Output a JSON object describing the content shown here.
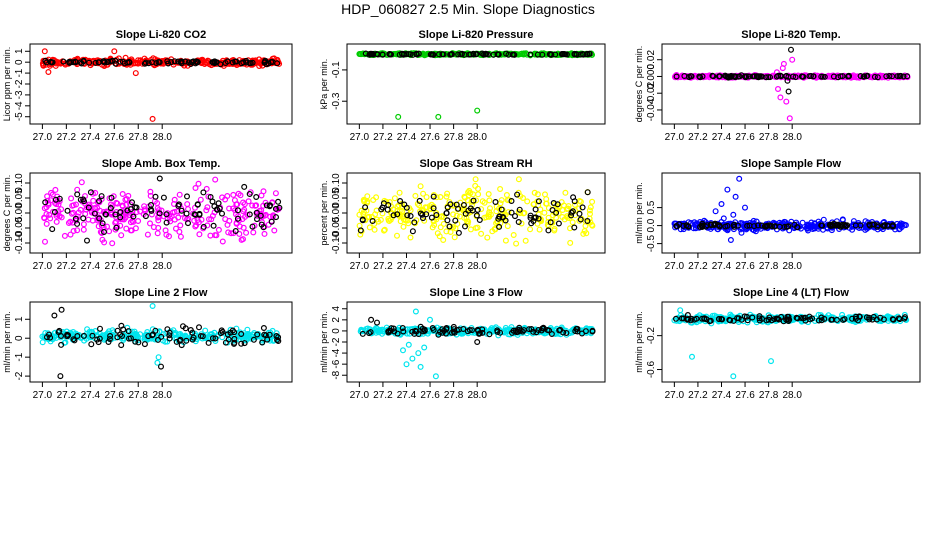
{
  "title": "HDP_060827  2.5 Min. Slope Diagnostics",
  "chart_data": [
    {
      "type": "scatter",
      "title": "Slope Li-820 CO2",
      "ylabel": "Licor ppm per min.",
      "xlim": [
        26.98,
        29.0
      ],
      "ylim": [
        -5.3,
        1.3
      ],
      "xticks": [
        27.0,
        27.2,
        27.4,
        27.6,
        27.8,
        28.0
      ],
      "xtick_labels": [
        "27.0",
        "27.2",
        "27.4",
        "27.6",
        "27.8",
        "28.0"
      ],
      "yticks": [
        -5,
        -4,
        -3,
        -2,
        -1,
        0,
        1
      ],
      "ytick_labels": [
        "-5",
        "-4",
        "-3",
        "-2",
        "-1",
        "0",
        "1"
      ],
      "series": [
        {
          "name": "all",
          "color": "#ff0000",
          "center": 0.0,
          "spread": 0.3,
          "outliers": [
            [
              27.02,
              1.0
            ],
            [
              27.92,
              -5.2
            ],
            [
              27.05,
              -0.9
            ],
            [
              27.6,
              1.0
            ],
            [
              27.78,
              -1.0
            ]
          ]
        },
        {
          "name": "selected",
          "color": "#000000",
          "center": 0.0,
          "spread": 0.15,
          "outliers": []
        }
      ]
    },
    {
      "type": "scatter",
      "title": "Slope Li-820 Pressure",
      "ylabel": "kPa per min.",
      "xlim": [
        26.98,
        29.0
      ],
      "ylim": [
        -0.42,
        0.04
      ],
      "xticks": [
        27.0,
        27.2,
        27.4,
        27.6,
        27.8,
        28.0
      ],
      "xtick_labels": [
        "27.0",
        "27.2",
        "27.4",
        "27.6",
        "27.8",
        "28.0"
      ],
      "yticks": [
        -0.3,
        -0.1
      ],
      "ytick_labels": [
        "-0.3",
        "-0.1"
      ],
      "series": [
        {
          "name": "all",
          "color": "#00cc00",
          "center": 0.0,
          "spread": 0.006,
          "outliers": [
            [
              27.33,
              -0.4
            ],
            [
              27.67,
              -0.4
            ],
            [
              28.0,
              -0.36
            ]
          ]
        },
        {
          "name": "selected",
          "color": "#000000",
          "center": 0.0,
          "spread": 0.004,
          "outliers": []
        }
      ]
    },
    {
      "type": "scatter",
      "title": "Slope Li-820 Temp.",
      "ylabel": "degrees C per min.",
      "xlim": [
        26.98,
        29.0
      ],
      "ylim": [
        -0.052,
        0.034
      ],
      "xticks": [
        27.0,
        27.2,
        27.4,
        27.6,
        27.8,
        28.0
      ],
      "xtick_labels": [
        "27.0",
        "27.2",
        "27.4",
        "27.6",
        "27.8",
        "28.0"
      ],
      "yticks": [
        -0.04,
        -0.02,
        0.0,
        0.02
      ],
      "ytick_labels": [
        "-0.04",
        "-0.02",
        "0.000",
        "0.02"
      ],
      "series": [
        {
          "name": "all",
          "color": "#ff00ff",
          "center": 0.0,
          "spread": 0.0015,
          "outliers": [
            [
              27.9,
              -0.025
            ],
            [
              27.92,
              0.01
            ],
            [
              27.95,
              -0.03
            ],
            [
              27.98,
              -0.05
            ],
            [
              27.93,
              0.015
            ],
            [
              28.0,
              0.02
            ],
            [
              27.87,
              0.005
            ],
            [
              27.88,
              -0.015
            ]
          ]
        },
        {
          "name": "selected",
          "color": "#000000",
          "center": 0.0,
          "spread": 0.001,
          "outliers": [
            [
              27.99,
              0.032
            ],
            [
              27.96,
              -0.005
            ],
            [
              27.97,
              -0.018
            ]
          ]
        }
      ]
    },
    {
      "type": "scatter",
      "title": "Slope Amb. Box Temp.",
      "ylabel": "degrees C per min.",
      "xlim": [
        26.98,
        29.0
      ],
      "ylim": [
        -0.12,
        0.12
      ],
      "xticks": [
        27.0,
        27.2,
        27.4,
        27.6,
        27.8,
        28.0
      ],
      "xtick_labels": [
        "27.0",
        "27.2",
        "27.4",
        "27.6",
        "27.8",
        "28.0"
      ],
      "yticks": [
        -0.1,
        -0.05,
        0.0,
        0.05,
        0.1
      ],
      "ytick_labels": [
        "-0.10",
        "-0.05",
        "0.00",
        "0.05",
        "0.10"
      ],
      "series": [
        {
          "name": "all",
          "color": "#ff00ff",
          "center": 0.0,
          "spread": 0.08,
          "outliers": []
        },
        {
          "name": "selected",
          "color": "#000000",
          "center": 0.0,
          "spread": 0.07,
          "outliers": [
            [
              27.98,
              0.115
            ]
          ]
        }
      ]
    },
    {
      "type": "scatter",
      "title": "Slope Gas Stream RH",
      "ylabel": "percent per min.",
      "xlim": [
        26.98,
        29.0
      ],
      "ylim": [
        -0.12,
        0.12
      ],
      "xticks": [
        27.0,
        27.2,
        27.4,
        27.6,
        27.8,
        28.0
      ],
      "xtick_labels": [
        "27.0",
        "27.2",
        "27.4",
        "27.6",
        "27.8",
        "28.0"
      ],
      "yticks": [
        -0.1,
        -0.05,
        0.0,
        0.05,
        0.1
      ],
      "ytick_labels": [
        "-0.10",
        "-0.05",
        "0.00",
        "0.05",
        "0.10"
      ],
      "series": [
        {
          "name": "all",
          "color": "#ffff00",
          "center": 0.0,
          "spread": 0.08,
          "outliers": []
        },
        {
          "name": "selected",
          "color": "#000000",
          "center": 0.0,
          "spread": 0.06,
          "outliers": []
        }
      ]
    },
    {
      "type": "scatter",
      "title": "Slope Sample Flow",
      "ylabel": "ml/min per min.",
      "xlim": [
        26.98,
        29.0
      ],
      "ylim": [
        -0.65,
        1.35
      ],
      "xticks": [
        27.0,
        27.2,
        27.4,
        27.6,
        27.8,
        28.0
      ],
      "xtick_labels": [
        "27.0",
        "27.2",
        "27.4",
        "27.6",
        "27.8",
        "28.0"
      ],
      "yticks": [
        -0.5,
        0.0,
        0.5
      ],
      "ytick_labels": [
        "-0.5",
        "0.0",
        "0.5"
      ],
      "series": [
        {
          "name": "all",
          "color": "#0000ff",
          "center": 0.0,
          "spread": 0.12,
          "outliers": [
            [
              27.45,
              1.0
            ],
            [
              27.55,
              1.3
            ],
            [
              27.4,
              0.6
            ],
            [
              27.35,
              0.4
            ],
            [
              27.5,
              0.3
            ],
            [
              27.6,
              0.5
            ],
            [
              27.48,
              -0.4
            ],
            [
              27.42,
              0.2
            ],
            [
              27.52,
              0.8
            ],
            [
              27.57,
              -0.2
            ]
          ]
        },
        {
          "name": "selected",
          "color": "#000000",
          "center": 0.0,
          "spread": 0.05,
          "outliers": []
        }
      ]
    },
    {
      "type": "scatter",
      "title": "Slope Line 2 Flow",
      "ylabel": "ml/min per min.",
      "xlim": [
        26.98,
        29.0
      ],
      "ylim": [
        -2.1,
        1.7
      ],
      "xticks": [
        27.0,
        27.2,
        27.4,
        27.6,
        27.8,
        28.0
      ],
      "xtick_labels": [
        "27.0",
        "27.2",
        "27.4",
        "27.6",
        "27.8",
        "28.0"
      ],
      "yticks": [
        -2,
        -1,
        0,
        1
      ],
      "ytick_labels": [
        "-2",
        "-1",
        "0",
        "1"
      ],
      "series": [
        {
          "name": "all",
          "color": "#00e5ee",
          "center": 0.1,
          "spread": 0.3,
          "outliers": [
            [
              27.92,
              1.7
            ],
            [
              27.97,
              -1.0
            ],
            [
              27.96,
              -1.3
            ]
          ]
        },
        {
          "name": "selected",
          "color": "#000000",
          "center": 0.1,
          "spread": 0.5,
          "outliers": [
            [
              27.15,
              -2.0
            ],
            [
              27.16,
              1.5
            ],
            [
              27.1,
              1.2
            ],
            [
              27.99,
              -1.5
            ]
          ]
        }
      ]
    },
    {
      "type": "scatter",
      "title": "Slope Line 3 Flow",
      "ylabel": "ml/min per min.",
      "xlim": [
        26.98,
        29.0
      ],
      "ylim": [
        -8.5,
        4.5
      ],
      "xticks": [
        27.0,
        27.2,
        27.4,
        27.6,
        27.8,
        28.0
      ],
      "xtick_labels": [
        "27.0",
        "27.2",
        "27.4",
        "27.6",
        "27.8",
        "28.0"
      ],
      "yticks": [
        -8,
        -6,
        -4,
        -2,
        0,
        2,
        4
      ],
      "ytick_labels": [
        "-8",
        "-6",
        "-4",
        "-2",
        "0",
        "2",
        "4"
      ],
      "series": [
        {
          "name": "all",
          "color": "#00e5ee",
          "center": 0.0,
          "spread": 0.6,
          "outliers": [
            [
              27.37,
              -3.5
            ],
            [
              27.4,
              -6.0
            ],
            [
              27.45,
              -5.0
            ],
            [
              27.5,
              -4.0
            ],
            [
              27.55,
              -3.0
            ],
            [
              27.65,
              -8.2
            ],
            [
              27.42,
              -2.5
            ],
            [
              27.48,
              3.5
            ],
            [
              27.52,
              -6.5
            ],
            [
              27.6,
              2.0
            ]
          ]
        },
        {
          "name": "selected",
          "color": "#000000",
          "center": 0.0,
          "spread": 0.6,
          "outliers": [
            [
              27.1,
              2.0
            ],
            [
              27.15,
              1.5
            ],
            [
              28.0,
              -2.0
            ]
          ]
        }
      ]
    },
    {
      "type": "scatter",
      "title": "Slope Line 4 (LT) Flow",
      "ylabel": "ml/min per min.",
      "xlim": [
        26.98,
        29.0
      ],
      "ylim": [
        -0.7,
        0.15
      ],
      "xticks": [
        27.0,
        27.2,
        27.4,
        27.6,
        27.8,
        28.0
      ],
      "xtick_labels": [
        "27.0",
        "27.2",
        "27.4",
        "27.6",
        "27.8",
        "28.0"
      ],
      "yticks": [
        -0.6,
        -0.2
      ],
      "ytick_labels": [
        "-0.6",
        "-0.2"
      ],
      "series": [
        {
          "name": "all",
          "color": "#00e5ee",
          "center": 0.0,
          "spread": 0.04,
          "outliers": [
            [
              27.15,
              -0.45
            ],
            [
              27.5,
              -0.68
            ],
            [
              27.82,
              -0.5
            ],
            [
              27.05,
              0.1
            ]
          ]
        },
        {
          "name": "selected",
          "color": "#000000",
          "center": 0.0,
          "spread": 0.03,
          "outliers": []
        }
      ]
    }
  ]
}
